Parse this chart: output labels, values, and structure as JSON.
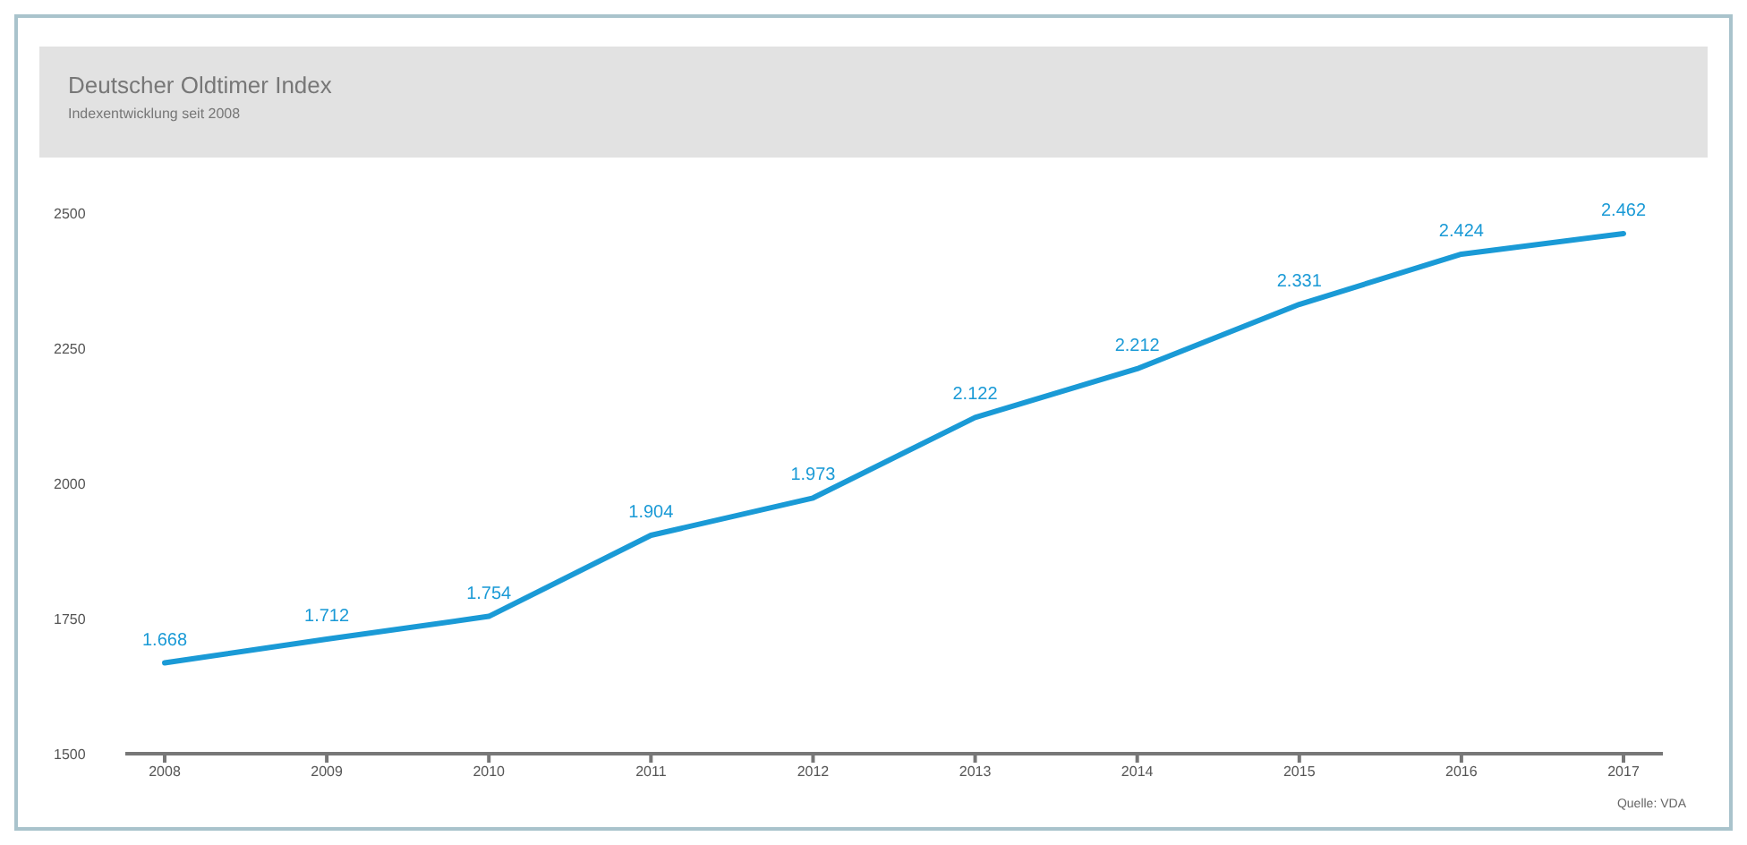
{
  "chart_data": {
    "type": "line",
    "title": "Deutscher Oldtimer Index",
    "subtitle": "Indexentwicklung seit 2008",
    "categories": [
      "2008",
      "2009",
      "2010",
      "2011",
      "2012",
      "2013",
      "2014",
      "2015",
      "2016",
      "2017"
    ],
    "series": [
      {
        "color": "#1a9ad6",
        "values": [
          1668,
          1712,
          1754,
          1904,
          1973,
          2122,
          2212,
          2331,
          2424,
          2462
        ],
        "value_labels": [
          "1.668",
          "1.712",
          "1.754",
          "1.904",
          "1.973",
          "2.122",
          "2.212",
          "2.331",
          "2.424",
          "2.462"
        ]
      }
    ],
    "ylim": [
      1500,
      2500
    ],
    "yticks": [
      1500,
      1750,
      2000,
      2250,
      2500
    ],
    "grid": false,
    "legend": false,
    "marker": "none",
    "line_style": "solid",
    "annotations": [
      "Quelle: VDA"
    ]
  }
}
